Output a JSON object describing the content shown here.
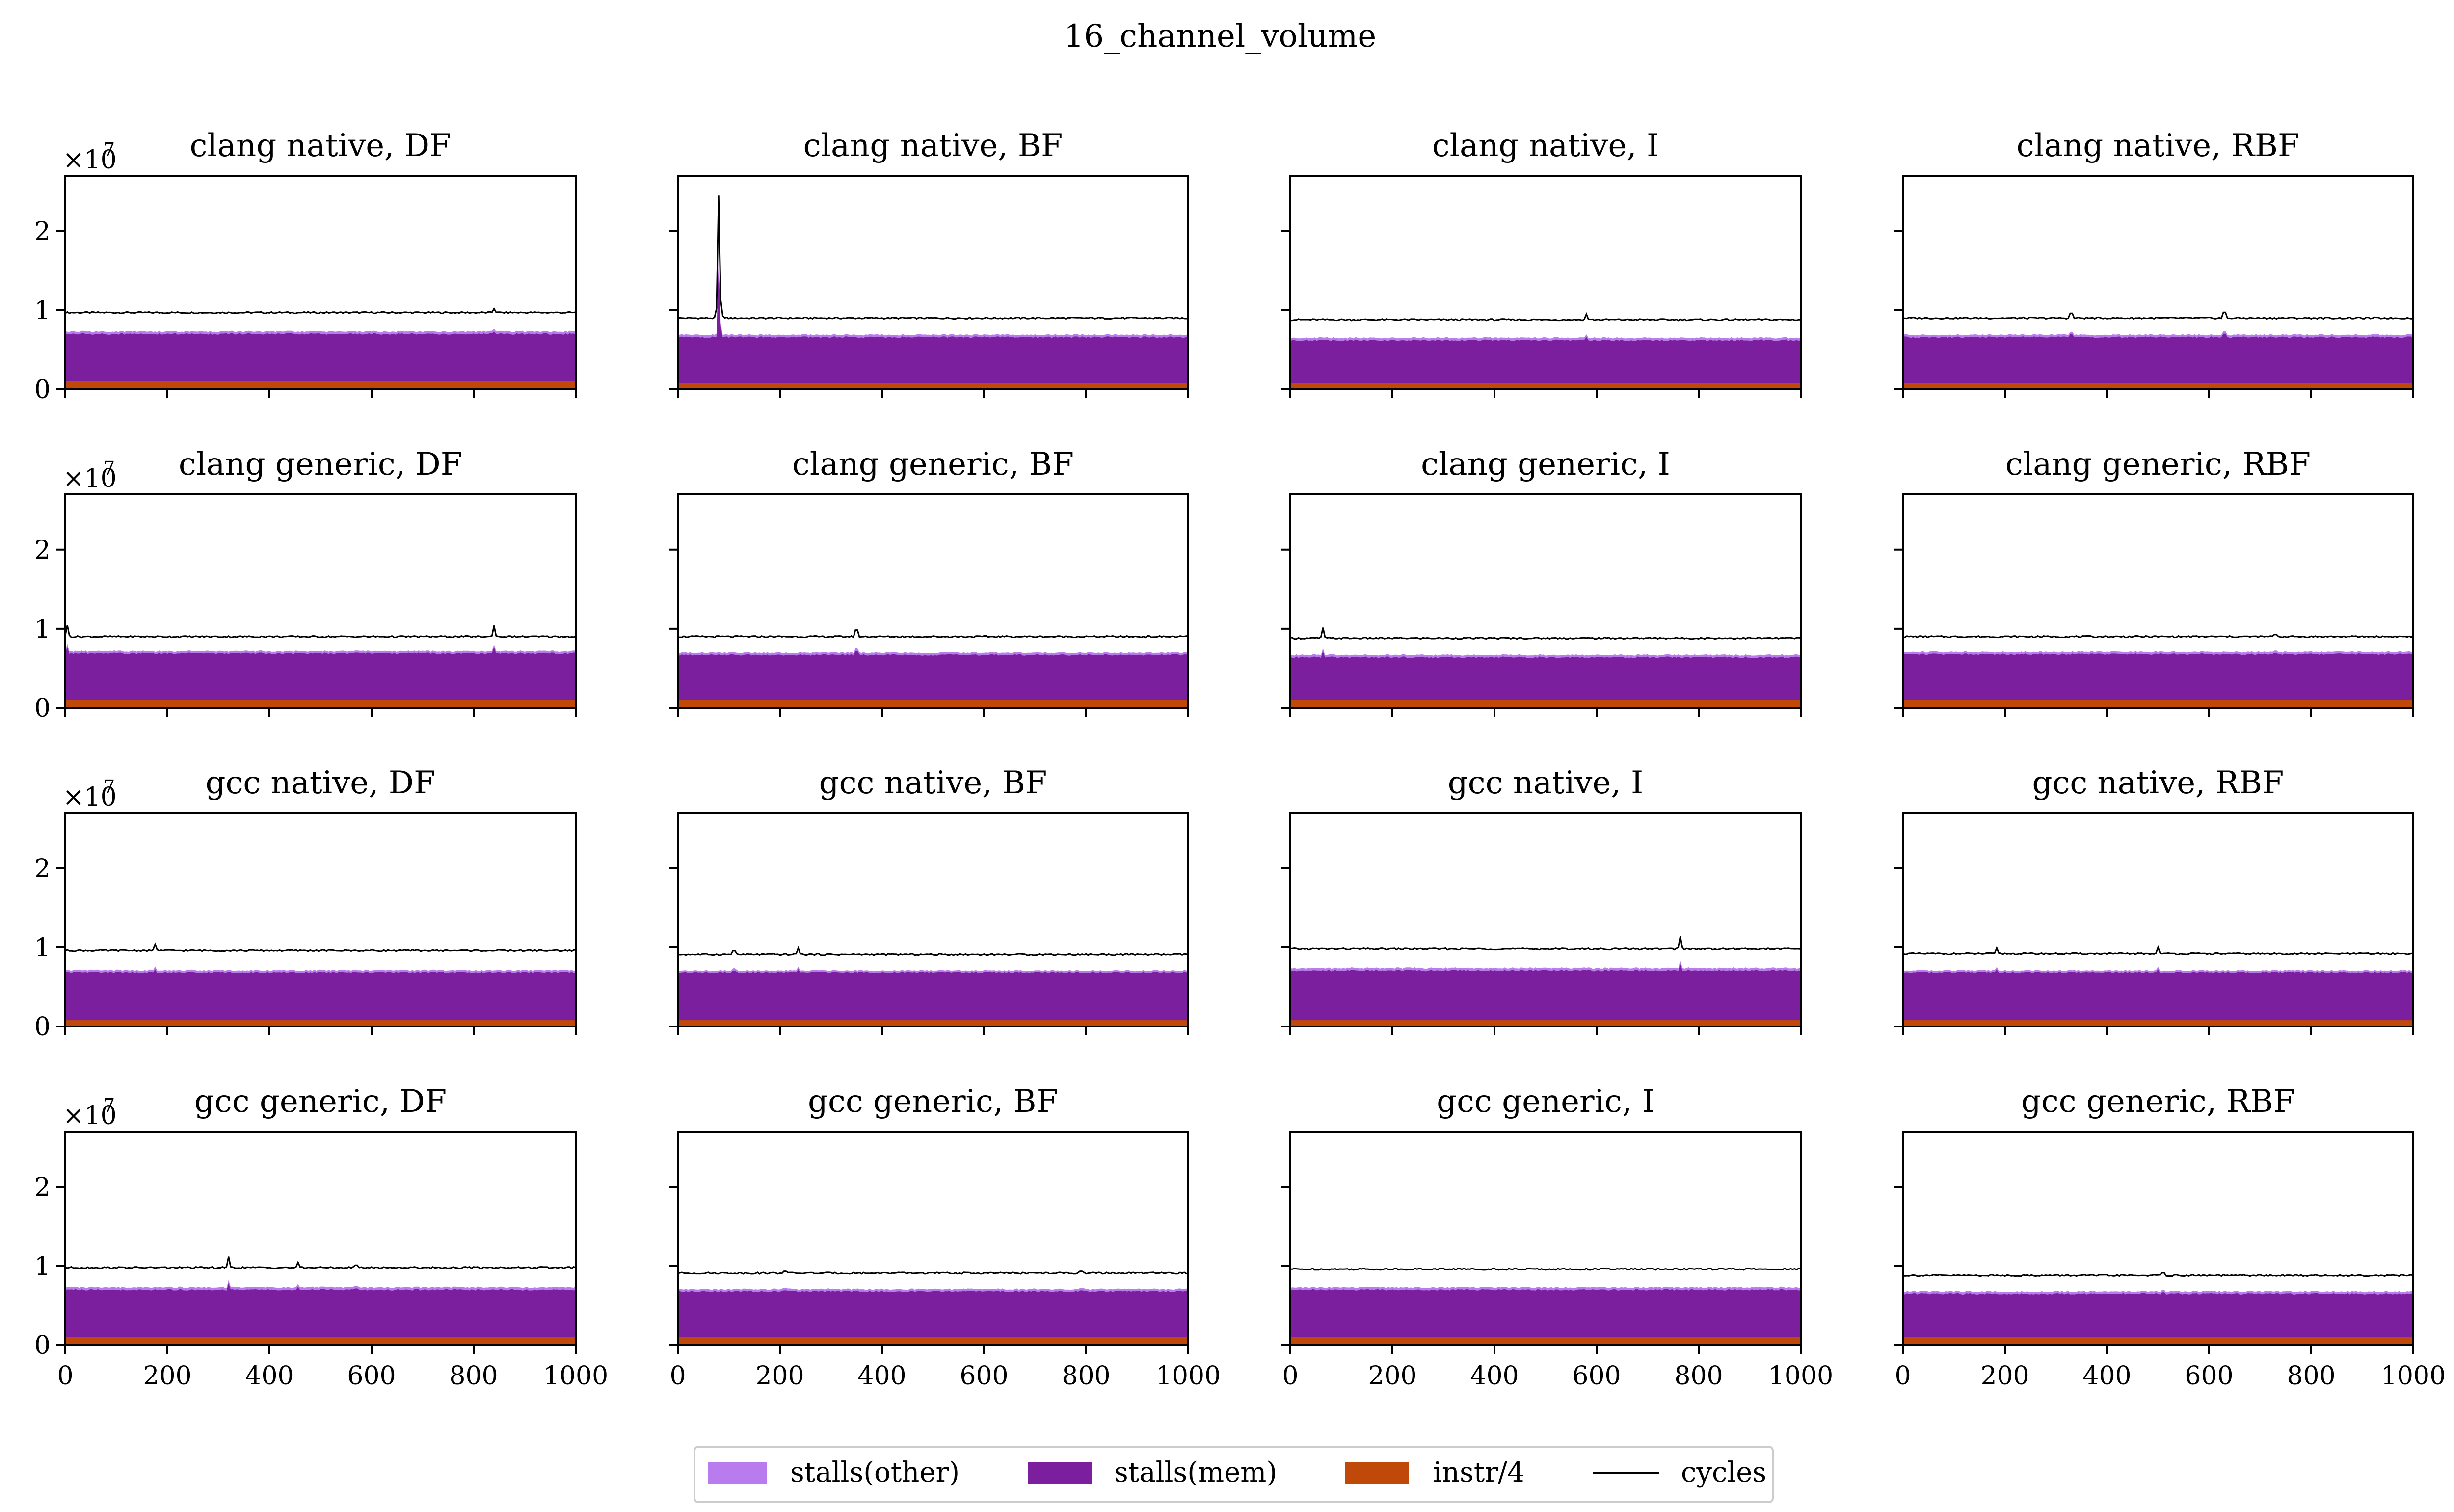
{
  "chart_data": {
    "type": "area",
    "title": "16_channel_volume",
    "offset_label": "×10",
    "offset_exponent": "7",
    "xlim": [
      0,
      1000
    ],
    "ylim": [
      0,
      2.7
    ],
    "x_ticks": [
      "0",
      "200",
      "400",
      "600",
      "800",
      "1000"
    ],
    "y_ticks": [
      "0",
      "1",
      "2"
    ],
    "legend": {
      "placement": "bottom-center",
      "entries": [
        {
          "key": "other",
          "label": "stalls(other)",
          "color": "#b97cee"
        },
        {
          "key": "mem",
          "label": "stalls(mem)",
          "color": "#7b1f9e"
        },
        {
          "key": "instr",
          "label": "instr/4",
          "color": "#c04808"
        },
        {
          "key": "cycles",
          "label": "cycles",
          "color": "#000000"
        }
      ]
    },
    "panels": [
      {
        "title": "clang native, DF",
        "cycles": 0.97,
        "mem": 0.7,
        "instr": 0.1,
        "spikes": [
          [
            840,
            1.02
          ]
        ]
      },
      {
        "title": "clang native, BF",
        "cycles": 0.9,
        "mem": 0.66,
        "instr": 0.08,
        "spikes": [
          [
            80,
            2.45
          ],
          [
            83,
            1.25
          ]
        ]
      },
      {
        "title": "clang native, I",
        "cycles": 0.88,
        "mem": 0.62,
        "instr": 0.08,
        "spikes": [
          [
            580,
            0.95
          ]
        ]
      },
      {
        "title": "clang native, RBF",
        "cycles": 0.9,
        "mem": 0.66,
        "instr": 0.08,
        "spikes": [
          [
            330,
            1.08
          ],
          [
            630,
            1.12
          ]
        ]
      },
      {
        "title": "clang generic, DF",
        "cycles": 0.9,
        "mem": 0.69,
        "instr": 0.1,
        "spikes": [
          [
            5,
            1.12
          ],
          [
            840,
            1.04
          ]
        ]
      },
      {
        "title": "clang generic, BF",
        "cycles": 0.9,
        "mem": 0.67,
        "instr": 0.1,
        "spikes": [
          [
            350,
            1.15
          ]
        ]
      },
      {
        "title": "clang generic, I",
        "cycles": 0.88,
        "mem": 0.64,
        "instr": 0.1,
        "spikes": [
          [
            65,
            1.08
          ]
        ]
      },
      {
        "title": "clang generic, RBF",
        "cycles": 0.9,
        "mem": 0.68,
        "instr": 0.1,
        "spikes": [
          [
            730,
            0.98
          ]
        ]
      },
      {
        "title": "gcc native, DF",
        "cycles": 0.96,
        "mem": 0.68,
        "instr": 0.08,
        "spikes": [
          [
            175,
            1.08
          ]
        ]
      },
      {
        "title": "gcc native, BF",
        "cycles": 0.91,
        "mem": 0.68,
        "instr": 0.08,
        "spikes": [
          [
            110,
            1.05
          ],
          [
            235,
            1.03
          ]
        ]
      },
      {
        "title": "gcc native, I",
        "cycles": 0.98,
        "mem": 0.71,
        "instr": 0.08,
        "spikes": [
          [
            765,
            1.22
          ]
        ]
      },
      {
        "title": "gcc native, RBF",
        "cycles": 0.92,
        "mem": 0.68,
        "instr": 0.08,
        "spikes": [
          [
            185,
            1.03
          ],
          [
            500,
            1.0
          ]
        ]
      },
      {
        "title": "gcc generic, DF",
        "cycles": 0.98,
        "mem": 0.7,
        "instr": 0.1,
        "spikes": [
          [
            320,
            1.12
          ],
          [
            455,
            1.08
          ],
          [
            570,
            1.07
          ]
        ]
      },
      {
        "title": "gcc generic, BF",
        "cycles": 0.91,
        "mem": 0.68,
        "instr": 0.1,
        "spikes": [
          [
            210,
            0.98
          ],
          [
            790,
            0.98
          ]
        ]
      },
      {
        "title": "gcc generic, I",
        "cycles": 0.96,
        "mem": 0.7,
        "instr": 0.1,
        "spikes": [
          [
            330,
            0.98
          ]
        ]
      },
      {
        "title": "gcc generic, RBF",
        "cycles": 0.88,
        "mem": 0.65,
        "instr": 0.1,
        "spikes": [
          [
            510,
            0.98
          ]
        ]
      }
    ]
  }
}
